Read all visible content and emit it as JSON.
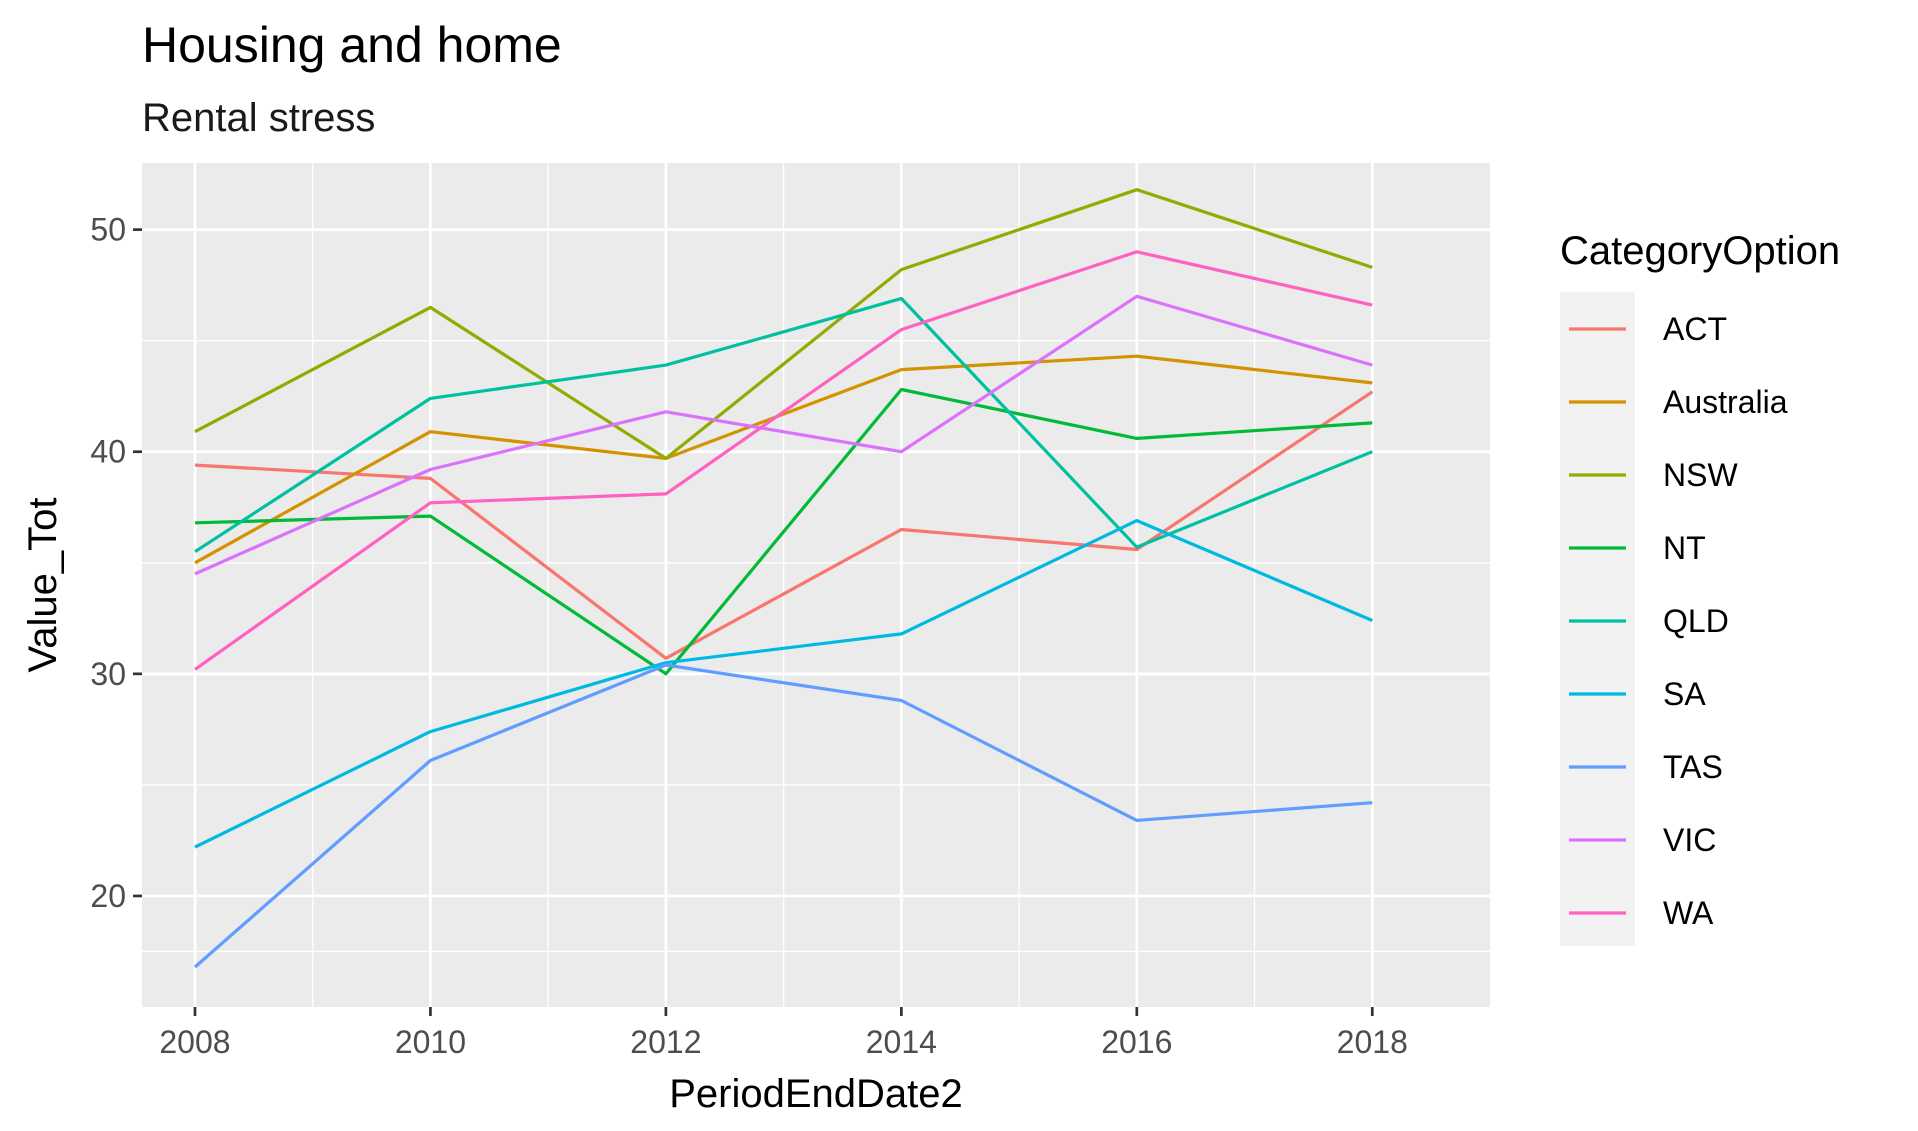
{
  "chart_data": {
    "type": "line",
    "title": "Housing and home",
    "subtitle": "Rental stress",
    "xlabel": "PeriodEndDate2",
    "ylabel": "Value_Tot",
    "x": [
      2008.0,
      2010.0,
      2012.0,
      2014.0,
      2016.0,
      2018.0
    ],
    "xlim": [
      2007.55,
      2019.0
    ],
    "ylim": [
      15.0,
      53.0
    ],
    "x_ticks": [
      "2008",
      "2010",
      "2012",
      "2014",
      "2016",
      "2018"
    ],
    "x_tick_values": [
      2008,
      2010,
      2012,
      2014,
      2016,
      2018
    ],
    "y_ticks": [
      "20",
      "30",
      "40",
      "50"
    ],
    "y_tick_values": [
      20,
      30,
      40,
      50
    ],
    "grid": true,
    "legend": {
      "title": "CategoryOption",
      "position": "right"
    },
    "series": [
      {
        "name": "ACT",
        "color": "#F8766D",
        "values": [
          39.4,
          38.8,
          30.7,
          36.5,
          35.6,
          42.7
        ]
      },
      {
        "name": "Australia",
        "color": "#D39200",
        "values": [
          35.0,
          40.9,
          39.7,
          43.7,
          44.3,
          43.1
        ]
      },
      {
        "name": "NSW",
        "color": "#93AA00",
        "values": [
          40.9,
          46.5,
          39.7,
          48.2,
          51.8,
          48.3
        ]
      },
      {
        "name": "NT",
        "color": "#00BA38",
        "values": [
          36.8,
          37.1,
          30.0,
          42.8,
          40.6,
          41.3
        ]
      },
      {
        "name": "QLD",
        "color": "#00C19F",
        "values": [
          35.5,
          42.4,
          43.9,
          46.9,
          35.7,
          40.0
        ]
      },
      {
        "name": "SA",
        "color": "#00B9E3",
        "values": [
          22.2,
          27.4,
          30.5,
          31.8,
          36.9,
          32.4
        ]
      },
      {
        "name": "TAS",
        "color": "#619CFF",
        "values": [
          16.8,
          26.1,
          30.4,
          28.8,
          23.4,
          24.2
        ]
      },
      {
        "name": "VIC",
        "color": "#DB72FB",
        "values": [
          34.5,
          39.2,
          41.8,
          40.0,
          47.0,
          43.9
        ]
      },
      {
        "name": "WA",
        "color": "#FF61C3",
        "values": [
          30.2,
          37.7,
          38.1,
          45.5,
          49.0,
          46.6
        ]
      }
    ]
  }
}
